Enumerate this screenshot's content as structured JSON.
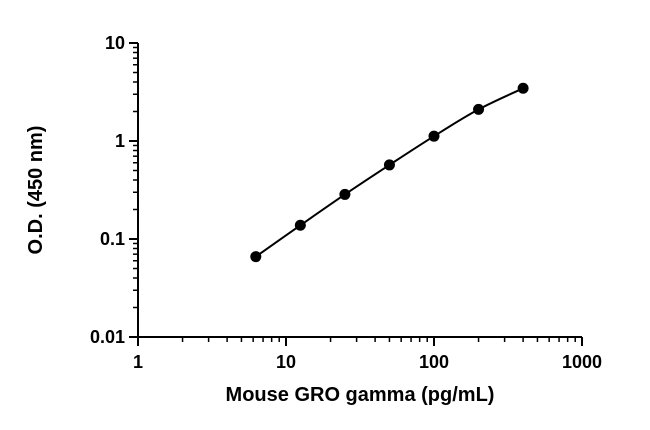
{
  "chart_data": {
    "type": "scatter",
    "title": "",
    "xlabel": "Mouse GRO gamma (pg/mL)",
    "ylabel": "O.D. (450 nm)",
    "xscale": "log",
    "yscale": "log",
    "xlim": [
      1,
      1000
    ],
    "ylim": [
      0.01,
      10
    ],
    "xticks": [
      1,
      10,
      100,
      1000
    ],
    "xtick_labels": [
      "1",
      "10",
      "100",
      "1000"
    ],
    "yticks": [
      0.01,
      0.1,
      1,
      10
    ],
    "ytick_labels": [
      "0.01",
      "0.1",
      "1",
      "10"
    ],
    "grid": false,
    "legend": "none",
    "fit_line": true,
    "series": [
      {
        "x": [
          6.25,
          12.5,
          25,
          50,
          100,
          200,
          400
        ],
        "y": [
          0.066,
          0.138,
          0.285,
          0.57,
          1.12,
          2.1,
          3.45
        ]
      }
    ],
    "colors": {
      "axis": "#000000",
      "marker": "#000000",
      "line": "#000000"
    }
  }
}
